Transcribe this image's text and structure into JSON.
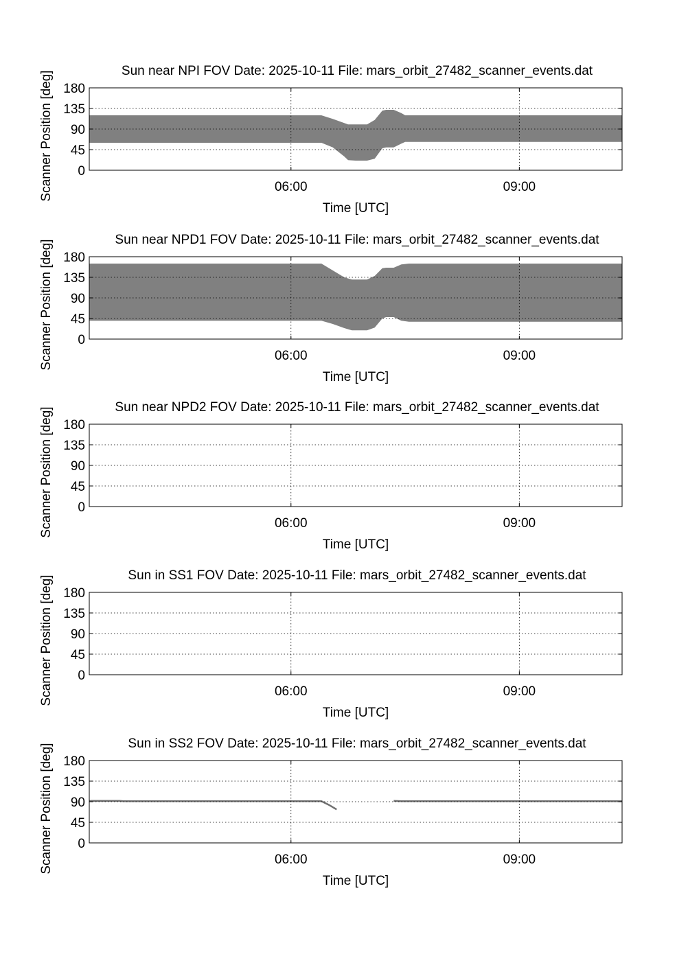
{
  "chart_data": [
    {
      "type": "area",
      "title": "Sun near NPI FOV   Date: 2025-10-11   File: mars_orbit_27482_scanner_events.dat",
      "xlabel": "Time [UTC]",
      "ylabel": "Scanner Position [deg]",
      "xlim_hours": [
        3.35,
        10.35
      ],
      "ylim": [
        0,
        180
      ],
      "yticks": [
        "0",
        "45",
        "90",
        "135",
        "180"
      ],
      "xticks": [
        {
          "t": 6,
          "label": "06:00"
        },
        {
          "t": 9,
          "label": "09:00"
        }
      ],
      "grid": true,
      "band": {
        "t": [
          3.35,
          6.4,
          6.55,
          6.7,
          6.75,
          6.85,
          7.0,
          7.1,
          7.2,
          7.25,
          7.35,
          7.45,
          7.5,
          7.9,
          10.35
        ],
        "lower": [
          60,
          60,
          50,
          30,
          22,
          21,
          21,
          25,
          48,
          50,
          50,
          58,
          62,
          62,
          62
        ],
        "upper": [
          120,
          120,
          112,
          103,
          100,
          100,
          100,
          110,
          130,
          132,
          132,
          125,
          120,
          120,
          120
        ]
      }
    },
    {
      "type": "area",
      "title": "Sun near NPD1 FOV   Date: 2025-10-11   File: mars_orbit_27482_scanner_events.dat",
      "xlabel": "Time [UTC]",
      "ylabel": "Scanner Position [deg]",
      "xlim_hours": [
        3.35,
        10.35
      ],
      "ylim": [
        0,
        180
      ],
      "yticks": [
        "0",
        "45",
        "90",
        "135",
        "180"
      ],
      "xticks": [
        {
          "t": 6,
          "label": "06:00"
        },
        {
          "t": 9,
          "label": "09:00"
        }
      ],
      "grid": true,
      "band": {
        "t": [
          3.35,
          6.4,
          6.55,
          6.7,
          6.8,
          6.85,
          7.0,
          7.1,
          7.2,
          7.25,
          7.35,
          7.45,
          7.55,
          10.35
        ],
        "lower": [
          40,
          40,
          33,
          24,
          19,
          19,
          19,
          25,
          45,
          48,
          48,
          40,
          38,
          38
        ],
        "upper": [
          165,
          165,
          150,
          135,
          130,
          130,
          130,
          138,
          155,
          156,
          156,
          163,
          165,
          165
        ]
      }
    },
    {
      "type": "area",
      "title": "Sun near NPD2 FOV   Date: 2025-10-11   File: mars_orbit_27482_scanner_events.dat",
      "xlabel": "Time [UTC]",
      "ylabel": "Scanner Position [deg]",
      "xlim_hours": [
        3.35,
        10.35
      ],
      "ylim": [
        0,
        180
      ],
      "yticks": [
        "0",
        "45",
        "90",
        "135",
        "180"
      ],
      "xticks": [
        {
          "t": 6,
          "label": "06:00"
        },
        {
          "t": 9,
          "label": "09:00"
        }
      ],
      "grid": true
    },
    {
      "type": "area",
      "title": "Sun in SS1 FOV   Date: 2025-10-11   File: mars_orbit_27482_scanner_events.dat",
      "xlabel": "Time [UTC]",
      "ylabel": "Scanner Position [deg]",
      "xlim_hours": [
        3.35,
        10.35
      ],
      "ylim": [
        0,
        180
      ],
      "yticks": [
        "0",
        "45",
        "90",
        "135",
        "180"
      ],
      "xticks": [
        {
          "t": 6,
          "label": "06:00"
        },
        {
          "t": 9,
          "label": "09:00"
        }
      ],
      "grid": true
    },
    {
      "type": "line",
      "title": "Sun in SS2 FOV   Date: 2025-10-11   File: mars_orbit_27482_scanner_events.dat",
      "xlabel": "Time [UTC]",
      "ylabel": "Scanner Position [deg]",
      "xlim_hours": [
        3.35,
        10.35
      ],
      "ylim": [
        0,
        180
      ],
      "yticks": [
        "0",
        "45",
        "90",
        "135",
        "180"
      ],
      "xticks": [
        {
          "t": 6,
          "label": "06:00"
        },
        {
          "t": 9,
          "label": "09:00"
        }
      ],
      "grid": true,
      "lines": [
        {
          "t": [
            3.35,
            3.75,
            3.8,
            6.4,
            6.5,
            6.6
          ],
          "y": [
            92,
            92,
            91,
            91,
            83,
            73
          ]
        },
        {
          "t": [
            7.35,
            7.45,
            10.35
          ],
          "y": [
            92,
            91,
            91
          ]
        }
      ]
    }
  ]
}
